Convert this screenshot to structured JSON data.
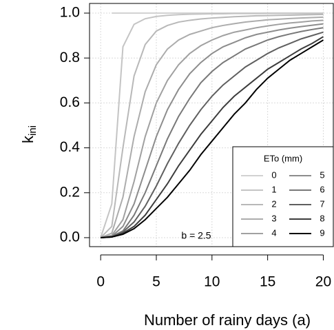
{
  "chart_data": {
    "type": "line",
    "xlabel": "Number of rainy days (a)",
    "ylabel": "k",
    "ylabel_subscript": "ini",
    "annotation": "b = 2.5",
    "legend_title": "ETo (mm)",
    "legend_position": "lower right",
    "grid": true,
    "x": [
      0,
      1,
      2,
      3,
      4,
      5,
      6,
      7,
      8,
      9,
      10,
      11,
      12,
      13,
      14,
      15,
      16,
      17,
      18,
      19,
      20
    ],
    "xlim": [
      -1,
      20.9
    ],
    "xticks": [
      0,
      5,
      10,
      15,
      20
    ],
    "ylim": [
      -0.04,
      1.043
    ],
    "yticks": [
      {
        "value": 0,
        "label": "0.0"
      },
      {
        "value": 0.2,
        "label": "0.2"
      },
      {
        "value": 0.4,
        "label": "0.4"
      },
      {
        "value": 0.6,
        "label": "0.6"
      },
      {
        "value": 0.8,
        "label": "0.8"
      },
      {
        "value": 1,
        "label": "1.0"
      }
    ],
    "series": [
      {
        "name": "0",
        "color": "#d2d2d2",
        "values": [
          null,
          1,
          1,
          1,
          1,
          1,
          1,
          1,
          1,
          1,
          1,
          1,
          1,
          1,
          1,
          1,
          1,
          1,
          1,
          1,
          1
        ]
      },
      {
        "name": "1",
        "color": "#c4c4c4",
        "values": [
          0,
          0.15,
          0.85,
          0.95,
          0.975,
          0.985,
          0.99,
          0.993,
          0.995,
          0.996,
          0.997,
          0.997,
          0.998,
          0.998,
          0.998,
          0.999,
          0.999,
          0.999,
          0.999,
          0.999,
          0.999
        ]
      },
      {
        "name": "2",
        "color": "#b8b8b8",
        "values": [
          0,
          0.05,
          0.4,
          0.72,
          0.86,
          0.92,
          0.945,
          0.96,
          0.968,
          0.974,
          0.978,
          0.981,
          0.984,
          0.986,
          0.988,
          0.989,
          0.99,
          0.991,
          0.992,
          0.993,
          0.994
        ]
      },
      {
        "name": "3",
        "color": "#acacac",
        "values": [
          0,
          0.02,
          0.18,
          0.45,
          0.65,
          0.77,
          0.84,
          0.88,
          0.905,
          0.92,
          0.935,
          0.945,
          0.953,
          0.96,
          0.965,
          0.97,
          0.973,
          0.976,
          0.978,
          0.98,
          0.982
        ]
      },
      {
        "name": "4",
        "color": "#a0a0a0",
        "values": [
          0,
          0.01,
          0.08,
          0.25,
          0.45,
          0.6,
          0.7,
          0.77,
          0.82,
          0.855,
          0.88,
          0.9,
          0.915,
          0.925,
          0.935,
          0.943,
          0.95,
          0.956,
          0.96,
          0.965,
          0.968
        ]
      },
      {
        "name": "5",
        "color": "#8c8c8c",
        "values": [
          0,
          0.006,
          0.05,
          0.15,
          0.3,
          0.45,
          0.57,
          0.66,
          0.73,
          0.78,
          0.82,
          0.85,
          0.87,
          0.89,
          0.905,
          0.915,
          0.925,
          0.933,
          0.94,
          0.946,
          0.952
        ]
      },
      {
        "name": "6",
        "color": "#787878",
        "values": [
          0,
          0.005,
          0.03,
          0.1,
          0.2,
          0.32,
          0.44,
          0.54,
          0.62,
          0.69,
          0.74,
          0.78,
          0.81,
          0.84,
          0.86,
          0.88,
          0.895,
          0.907,
          0.918,
          0.927,
          0.935
        ]
      },
      {
        "name": "7",
        "color": "#5f5f5f",
        "values": [
          0,
          0.004,
          0.025,
          0.07,
          0.14,
          0.23,
          0.33,
          0.42,
          0.5,
          0.57,
          0.63,
          0.68,
          0.72,
          0.76,
          0.79,
          0.82,
          0.845,
          0.865,
          0.885,
          0.9,
          0.915
        ]
      },
      {
        "name": "8",
        "color": "#3c3c3c",
        "values": [
          0,
          0.003,
          0.02,
          0.05,
          0.1,
          0.17,
          0.24,
          0.32,
          0.39,
          0.46,
          0.52,
          0.58,
          0.63,
          0.67,
          0.71,
          0.75,
          0.78,
          0.81,
          0.84,
          0.865,
          0.895
        ]
      },
      {
        "name": "9",
        "color": "#000000",
        "values": [
          0,
          0.003,
          0.015,
          0.04,
          0.08,
          0.13,
          0.18,
          0.24,
          0.3,
          0.37,
          0.43,
          0.49,
          0.55,
          0.6,
          0.66,
          0.71,
          0.75,
          0.79,
          0.82,
          0.85,
          0.88
        ]
      }
    ]
  }
}
